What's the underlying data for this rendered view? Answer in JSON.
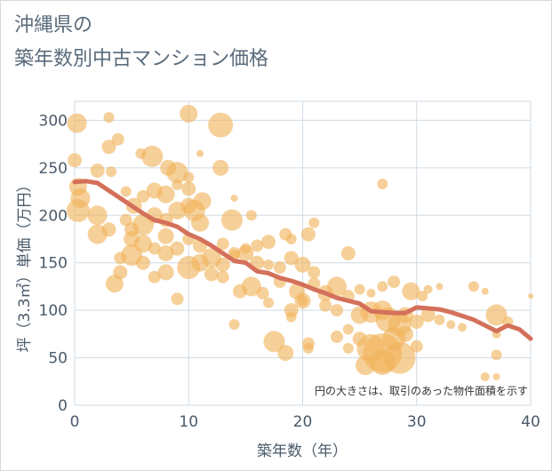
{
  "header": {
    "title_line1": "沖縄県の",
    "title_line2": "築年数別中古マンション価格"
  },
  "chart_data": {
    "type": "scatter",
    "title": "沖縄県の 築年数別中古マンション価格",
    "xlabel": "築年数（年）",
    "ylabel": "坪（3.3㎡）単価（万円）",
    "xlim": [
      0,
      40
    ],
    "ylim": [
      0,
      320
    ],
    "xticks": [
      0,
      10,
      20,
      30,
      40
    ],
    "yticks": [
      0,
      50,
      100,
      150,
      200,
      250,
      300
    ],
    "grid": true,
    "note": "円の大きさは、取引のあった物件面積を示す",
    "colors": {
      "bubble": "#f0b35a",
      "line": "#d4705a",
      "grid": "#cfdbe6",
      "text": "#4a5a6a"
    },
    "trend_line": {
      "x": [
        0,
        1,
        2,
        3,
        4,
        5,
        6,
        7,
        8,
        9,
        10,
        11,
        12,
        13,
        14,
        15,
        16,
        17,
        18,
        19,
        20,
        21,
        22,
        23,
        24,
        25,
        26,
        27,
        28,
        29,
        30,
        31,
        32,
        33,
        34,
        35,
        36,
        37,
        38,
        39,
        40
      ],
      "y": [
        235,
        236,
        234,
        226,
        218,
        210,
        202,
        195,
        192,
        188,
        180,
        175,
        168,
        160,
        152,
        150,
        141,
        139,
        134,
        131,
        127,
        122,
        118,
        113,
        110,
        107,
        99,
        98,
        97,
        97,
        103,
        102,
        101,
        98,
        94,
        90,
        84,
        78,
        84,
        80,
        70
      ]
    },
    "bubbles": [
      {
        "x": 0.2,
        "y": 297,
        "s": 11
      },
      {
        "x": 3,
        "y": 303,
        "s": 6
      },
      {
        "x": 10,
        "y": 307,
        "s": 10
      },
      {
        "x": 12.8,
        "y": 295,
        "s": 14
      },
      {
        "x": 0,
        "y": 258,
        "s": 8
      },
      {
        "x": 3,
        "y": 272,
        "s": 8
      },
      {
        "x": 3.8,
        "y": 280,
        "s": 7
      },
      {
        "x": 5.8,
        "y": 265,
        "s": 6
      },
      {
        "x": 6.8,
        "y": 262,
        "s": 12
      },
      {
        "x": 11,
        "y": 265,
        "s": 4
      },
      {
        "x": 2,
        "y": 247,
        "s": 8
      },
      {
        "x": 3.2,
        "y": 246,
        "s": 6
      },
      {
        "x": 8.2,
        "y": 250,
        "s": 9
      },
      {
        "x": 9,
        "y": 245,
        "s": 12
      },
      {
        "x": 10,
        "y": 240,
        "s": 6
      },
      {
        "x": 12.8,
        "y": 250,
        "s": 9
      },
      {
        "x": 0.3,
        "y": 230,
        "s": 10
      },
      {
        "x": 0.5,
        "y": 218,
        "s": 11
      },
      {
        "x": 4.5,
        "y": 225,
        "s": 6
      },
      {
        "x": 5.2,
        "y": 210,
        "s": 9
      },
      {
        "x": 6,
        "y": 220,
        "s": 7
      },
      {
        "x": 7,
        "y": 226,
        "s": 9
      },
      {
        "x": 8,
        "y": 222,
        "s": 10
      },
      {
        "x": 9,
        "y": 232,
        "s": 6
      },
      {
        "x": 10,
        "y": 228,
        "s": 8
      },
      {
        "x": 11.2,
        "y": 215,
        "s": 10
      },
      {
        "x": 14,
        "y": 218,
        "s": 4
      },
      {
        "x": 0.3,
        "y": 205,
        "s": 13
      },
      {
        "x": 2,
        "y": 200,
        "s": 11
      },
      {
        "x": 3,
        "y": 185,
        "s": 8
      },
      {
        "x": 2,
        "y": 180,
        "s": 11
      },
      {
        "x": 4.5,
        "y": 195,
        "s": 7
      },
      {
        "x": 5,
        "y": 185,
        "s": 8
      },
      {
        "x": 6,
        "y": 190,
        "s": 12
      },
      {
        "x": 7,
        "y": 200,
        "s": 9
      },
      {
        "x": 8,
        "y": 195,
        "s": 8
      },
      {
        "x": 9,
        "y": 205,
        "s": 10
      },
      {
        "x": 10,
        "y": 210,
        "s": 9
      },
      {
        "x": 10.5,
        "y": 205,
        "s": 12
      },
      {
        "x": 11,
        "y": 192,
        "s": 10
      },
      {
        "x": 13.8,
        "y": 195,
        "s": 12
      },
      {
        "x": 15.5,
        "y": 200,
        "s": 6
      },
      {
        "x": 5,
        "y": 175,
        "s": 9
      },
      {
        "x": 6,
        "y": 170,
        "s": 10
      },
      {
        "x": 7,
        "y": 165,
        "s": 7
      },
      {
        "x": 8,
        "y": 178,
        "s": 9
      },
      {
        "x": 9,
        "y": 165,
        "s": 8
      },
      {
        "x": 10,
        "y": 175,
        "s": 7
      },
      {
        "x": 11,
        "y": 168,
        "s": 8
      },
      {
        "x": 13,
        "y": 170,
        "s": 7
      },
      {
        "x": 14,
        "y": 160,
        "s": 7
      },
      {
        "x": 15,
        "y": 165,
        "s": 6
      },
      {
        "x": 16,
        "y": 168,
        "s": 7
      },
      {
        "x": 17,
        "y": 172,
        "s": 8
      },
      {
        "x": 18.5,
        "y": 180,
        "s": 7
      },
      {
        "x": 19,
        "y": 175,
        "s": 6
      },
      {
        "x": 20.5,
        "y": 180,
        "s": 8
      },
      {
        "x": 21,
        "y": 192,
        "s": 6
      },
      {
        "x": 4,
        "y": 155,
        "s": 7
      },
      {
        "x": 5,
        "y": 158,
        "s": 12
      },
      {
        "x": 6,
        "y": 150,
        "s": 8
      },
      {
        "x": 8,
        "y": 160,
        "s": 9
      },
      {
        "x": 10,
        "y": 145,
        "s": 13
      },
      {
        "x": 11,
        "y": 150,
        "s": 10
      },
      {
        "x": 12,
        "y": 155,
        "s": 11
      },
      {
        "x": 13,
        "y": 148,
        "s": 8
      },
      {
        "x": 14,
        "y": 158,
        "s": 6
      },
      {
        "x": 15,
        "y": 160,
        "s": 9
      },
      {
        "x": 16,
        "y": 150,
        "s": 8
      },
      {
        "x": 17,
        "y": 148,
        "s": 6
      },
      {
        "x": 18,
        "y": 145,
        "s": 7
      },
      {
        "x": 19,
        "y": 155,
        "s": 8
      },
      {
        "x": 20,
        "y": 148,
        "s": 9
      },
      {
        "x": 21,
        "y": 140,
        "s": 7
      },
      {
        "x": 24,
        "y": 160,
        "s": 8
      },
      {
        "x": 3.5,
        "y": 128,
        "s": 10
      },
      {
        "x": 4,
        "y": 140,
        "s": 8
      },
      {
        "x": 7,
        "y": 135,
        "s": 7
      },
      {
        "x": 8,
        "y": 140,
        "s": 9
      },
      {
        "x": 12,
        "y": 138,
        "s": 8
      },
      {
        "x": 13,
        "y": 135,
        "s": 7
      },
      {
        "x": 14.5,
        "y": 120,
        "s": 8
      },
      {
        "x": 15.5,
        "y": 125,
        "s": 11
      },
      {
        "x": 16.5,
        "y": 118,
        "s": 7
      },
      {
        "x": 18,
        "y": 130,
        "s": 7
      },
      {
        "x": 19.5,
        "y": 120,
        "s": 9
      },
      {
        "x": 20,
        "y": 110,
        "s": 9
      },
      {
        "x": 21,
        "y": 128,
        "s": 7
      },
      {
        "x": 22,
        "y": 118,
        "s": 9
      },
      {
        "x": 23,
        "y": 125,
        "s": 11
      },
      {
        "x": 24,
        "y": 115,
        "s": 7
      },
      {
        "x": 25,
        "y": 122,
        "s": 6
      },
      {
        "x": 26,
        "y": 118,
        "s": 5
      },
      {
        "x": 27,
        "y": 125,
        "s": 6
      },
      {
        "x": 28,
        "y": 130,
        "s": 7
      },
      {
        "x": 29.5,
        "y": 120,
        "s": 10
      },
      {
        "x": 30.5,
        "y": 115,
        "s": 6
      },
      {
        "x": 31,
        "y": 122,
        "s": 5
      },
      {
        "x": 32,
        "y": 125,
        "s": 4
      },
      {
        "x": 35,
        "y": 125,
        "s": 6
      },
      {
        "x": 36,
        "y": 120,
        "s": 4
      },
      {
        "x": 9,
        "y": 112,
        "s": 7
      },
      {
        "x": 14,
        "y": 85,
        "s": 6
      },
      {
        "x": 17,
        "y": 108,
        "s": 6
      },
      {
        "x": 19,
        "y": 100,
        "s": 8
      },
      {
        "x": 19,
        "y": 93,
        "s": 6
      },
      {
        "x": 20,
        "y": 110,
        "s": 6
      },
      {
        "x": 22,
        "y": 105,
        "s": 7
      },
      {
        "x": 23,
        "y": 100,
        "s": 7
      },
      {
        "x": 25,
        "y": 95,
        "s": 10
      },
      {
        "x": 26,
        "y": 98,
        "s": 12
      },
      {
        "x": 27,
        "y": 100,
        "s": 11
      },
      {
        "x": 27.5,
        "y": 90,
        "s": 14
      },
      {
        "x": 28.5,
        "y": 85,
        "s": 13
      },
      {
        "x": 29,
        "y": 95,
        "s": 9
      },
      {
        "x": 30,
        "y": 88,
        "s": 8
      },
      {
        "x": 31,
        "y": 95,
        "s": 8
      },
      {
        "x": 32,
        "y": 90,
        "s": 6
      },
      {
        "x": 33,
        "y": 85,
        "s": 5
      },
      {
        "x": 34,
        "y": 82,
        "s": 5
      },
      {
        "x": 37,
        "y": 95,
        "s": 12
      },
      {
        "x": 38,
        "y": 88,
        "s": 6
      },
      {
        "x": 17.5,
        "y": 67,
        "s": 12
      },
      {
        "x": 18.5,
        "y": 55,
        "s": 9
      },
      {
        "x": 20.5,
        "y": 65,
        "s": 7
      },
      {
        "x": 20.5,
        "y": 60,
        "s": 6
      },
      {
        "x": 23,
        "y": 72,
        "s": 7
      },
      {
        "x": 24,
        "y": 80,
        "s": 6
      },
      {
        "x": 25,
        "y": 70,
        "s": 8
      },
      {
        "x": 26,
        "y": 60,
        "s": 16
      },
      {
        "x": 27,
        "y": 55,
        "s": 22
      },
      {
        "x": 28,
        "y": 70,
        "s": 13
      },
      {
        "x": 28.5,
        "y": 50,
        "s": 18
      },
      {
        "x": 29,
        "y": 75,
        "s": 9
      },
      {
        "x": 30,
        "y": 62,
        "s": 7
      },
      {
        "x": 25.5,
        "y": 42,
        "s": 11
      },
      {
        "x": 27,
        "y": 45,
        "s": 14
      },
      {
        "x": 37,
        "y": 53,
        "s": 6
      },
      {
        "x": 37,
        "y": 75,
        "s": 5
      },
      {
        "x": 36,
        "y": 30,
        "s": 5
      },
      {
        "x": 37,
        "y": 30,
        "s": 4
      },
      {
        "x": 24,
        "y": 60,
        "s": 6
      },
      {
        "x": 27,
        "y": 233,
        "s": 6
      },
      {
        "x": 40,
        "y": 115,
        "s": 3
      }
    ]
  }
}
